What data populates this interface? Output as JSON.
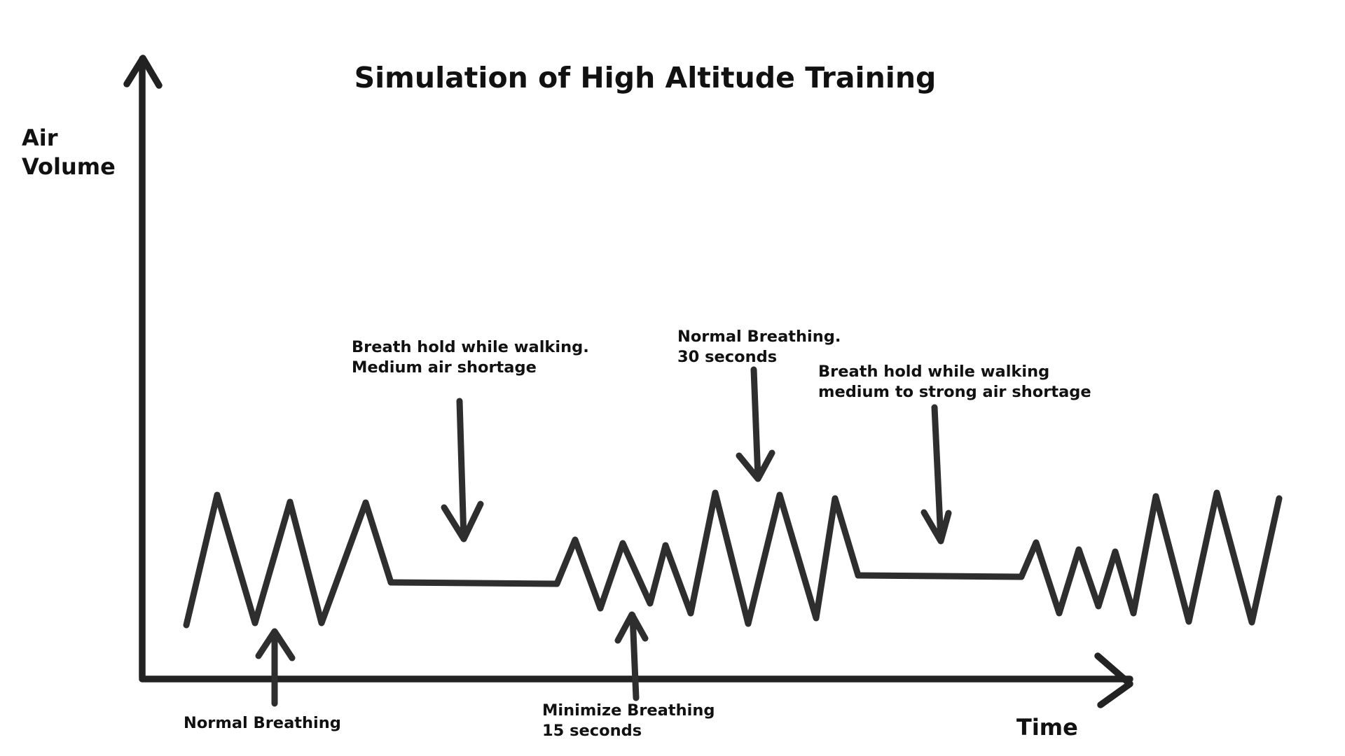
{
  "title": "Simulation of High Altitude Training",
  "axes": {
    "y_label_line1": "Air",
    "y_label_line2": "Volume",
    "x_label": "Time"
  },
  "annotations": {
    "normal_breathing_start": {
      "line1": "Normal Breathing"
    },
    "breath_hold_medium": {
      "line1": "Breath hold while walking.",
      "line2": "Medium air shortage"
    },
    "minimize_breathing": {
      "line1": "Minimize Breathing",
      "line2": "15 seconds"
    },
    "normal_breathing_30": {
      "line1": "Normal Breathing.",
      "line2": "30 seconds"
    },
    "breath_hold_strong": {
      "line1": "Breath hold while walking",
      "line2": "medium to strong air shortage"
    }
  },
  "colors": {
    "line": "#2e2e2e",
    "axis": "#222222",
    "text": "#111111",
    "background": "#ffffff"
  }
}
